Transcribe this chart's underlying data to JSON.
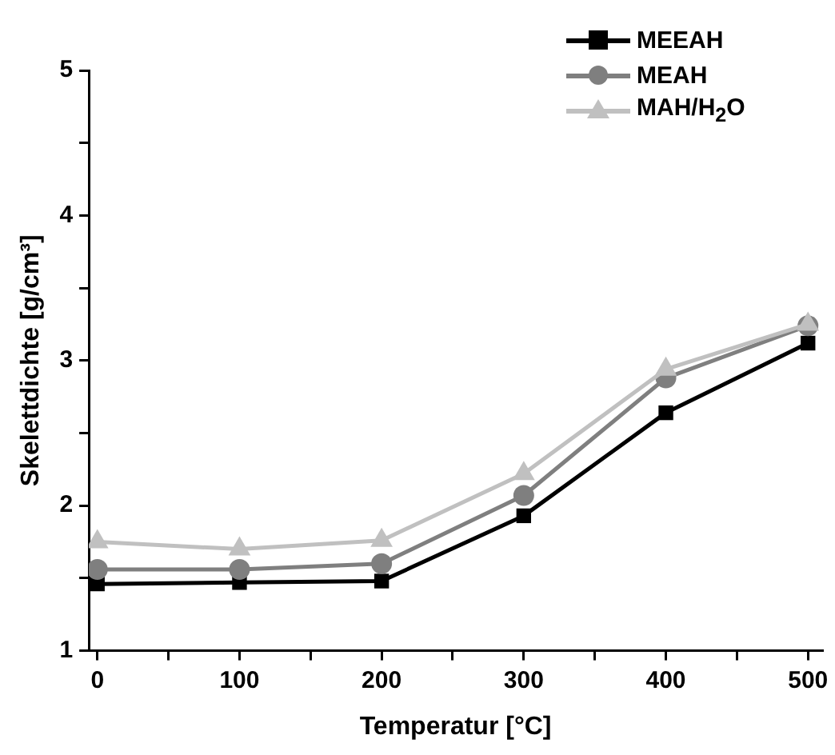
{
  "chart_data": {
    "type": "line",
    "xlabel": "Temperatur [°C]",
    "ylabel": "Skelettdichte [g/cm³]",
    "x": [
      0,
      100,
      200,
      300,
      400,
      500
    ],
    "series": [
      {
        "name": "MEEAH",
        "color": "#000000",
        "marker": "square",
        "values": [
          1.46,
          1.47,
          1.48,
          1.93,
          2.64,
          3.12
        ]
      },
      {
        "name": "MEAH",
        "color": "#7f7f7f",
        "marker": "circle",
        "values": [
          1.56,
          1.56,
          1.6,
          2.07,
          2.88,
          3.24
        ]
      },
      {
        "name": "MAH/H$_{2}$O",
        "color": "#c0c0c0",
        "marker": "triangle",
        "values": [
          1.75,
          1.7,
          1.76,
          2.22,
          2.94,
          3.25
        ]
      }
    ],
    "xlim": [
      -6,
      510
    ],
    "xticks": [
      0,
      {
        "value": 50,
        "label": null
      },
      100,
      {
        "value": 150,
        "label": null
      },
      200,
      {
        "value": 250,
        "label": null
      },
      300,
      {
        "value": 350,
        "label": null
      },
      400,
      {
        "value": 450,
        "label": null
      },
      500
    ],
    "ylim": [
      1,
      5
    ],
    "yticks": [
      1,
      {
        "value": 1.5,
        "label": null
      },
      2,
      {
        "value": 2.5,
        "label": null
      },
      3,
      {
        "value": 3.5,
        "label": null
      },
      4,
      {
        "value": 4.5,
        "label": null
      },
      5
    ],
    "grid": false,
    "legend": "top right",
    "line_style": "solid"
  }
}
